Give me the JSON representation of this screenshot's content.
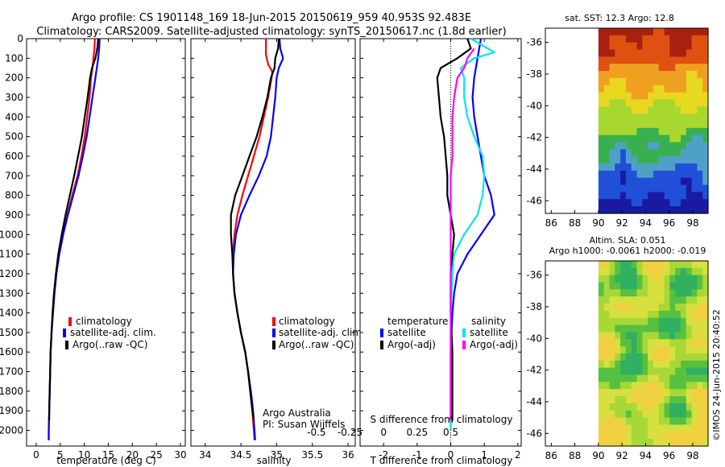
{
  "header": {
    "line1": "Argo profile: CS 1901148_169 18-Jun-2015 20150619_959 40.953S 92.483E",
    "line2": "Climatology: CARS2009. Satellite-adjusted climatology: synTS_20150617.nc (1.8d earlier)"
  },
  "credits": {
    "org": "Argo Australia",
    "pi": "PI: Susan Wijffels",
    "stamp": "©IMOS 24-Jun-2015 20:40:52"
  },
  "colors": {
    "climatology": "#ff0000",
    "satellite": "#0000ff",
    "argo": "#000000",
    "t_satellite": "#0000ff",
    "t_argo": "#000000",
    "s_satellite": "#00e5ee",
    "s_argo": "#ff00ff"
  },
  "chart_data": [
    {
      "type": "line",
      "id": "temperature",
      "xlabel": "temperature (deg C)",
      "ylabel": "",
      "xlim": [
        -2,
        31
      ],
      "ylim": [
        2080,
        0
      ],
      "xticks": [
        0,
        5,
        10,
        15,
        20,
        25,
        30
      ],
      "yticks": [
        0,
        100,
        200,
        300,
        400,
        500,
        600,
        700,
        800,
        900,
        1000,
        1100,
        1200,
        1300,
        1400,
        1500,
        1600,
        1700,
        1800,
        1900,
        2000
      ],
      "legend": [
        "climatology",
        "satellite-adj. clim.",
        "Argo(..raw -QC)"
      ],
      "series": [
        {
          "name": "climatology",
          "color_key": "climatology",
          "points": [
            [
              12.2,
              0
            ],
            [
              12.1,
              50
            ],
            [
              11.9,
              100
            ],
            [
              11.7,
              150
            ],
            [
              11.4,
              200
            ],
            [
              11.1,
              300
            ],
            [
              10.6,
              400
            ],
            [
              10.1,
              500
            ],
            [
              9.4,
              600
            ],
            [
              8.6,
              700
            ],
            [
              7.5,
              800
            ],
            [
              6.5,
              900
            ],
            [
              5.6,
              1000
            ],
            [
              4.8,
              1100
            ],
            [
              4.2,
              1200
            ],
            [
              3.8,
              1300
            ],
            [
              3.5,
              1400
            ],
            [
              3.2,
              1500
            ],
            [
              3.0,
              1600
            ],
            [
              2.9,
              1700
            ],
            [
              2.8,
              1800
            ],
            [
              2.7,
              1900
            ],
            [
              2.6,
              2000
            ],
            [
              2.6,
              2050
            ]
          ]
        },
        {
          "name": "satellite-adj. clim.",
          "color_key": "satellite",
          "points": [
            [
              13.2,
              0
            ],
            [
              13.1,
              50
            ],
            [
              12.9,
              100
            ],
            [
              12.6,
              150
            ],
            [
              12.3,
              200
            ],
            [
              11.7,
              300
            ],
            [
              11.1,
              400
            ],
            [
              10.5,
              500
            ],
            [
              9.7,
              600
            ],
            [
              8.8,
              700
            ],
            [
              7.7,
              800
            ],
            [
              6.6,
              900
            ],
            [
              5.6,
              1000
            ],
            [
              4.8,
              1100
            ],
            [
              4.2,
              1200
            ],
            [
              3.8,
              1300
            ],
            [
              3.5,
              1400
            ],
            [
              3.2,
              1500
            ],
            [
              3.0,
              1600
            ],
            [
              2.9,
              1700
            ],
            [
              2.8,
              1800
            ],
            [
              2.7,
              1900
            ],
            [
              2.6,
              2000
            ],
            [
              2.6,
              2050
            ]
          ]
        },
        {
          "name": "Argo(..raw -QC)",
          "color_key": "argo",
          "points": [
            [
              12.9,
              0
            ],
            [
              12.7,
              50
            ],
            [
              12.3,
              100
            ],
            [
              11.6,
              150
            ],
            [
              11.2,
              200
            ],
            [
              10.7,
              300
            ],
            [
              10.1,
              400
            ],
            [
              9.5,
              500
            ],
            [
              8.7,
              600
            ],
            [
              7.9,
              700
            ],
            [
              7.0,
              800
            ],
            [
              6.1,
              900
            ],
            [
              5.3,
              1000
            ],
            [
              4.6,
              1100
            ],
            [
              4.1,
              1200
            ],
            [
              3.7,
              1300
            ],
            [
              3.4,
              1400
            ],
            [
              3.2,
              1500
            ],
            [
              3.0,
              1600
            ],
            [
              2.9,
              1700
            ],
            [
              2.8,
              1800
            ],
            [
              2.7,
              1900
            ],
            [
              2.7,
              1950
            ]
          ]
        }
      ]
    },
    {
      "type": "line",
      "id": "salinity",
      "xlabel": "salinity",
      "ylabel": "",
      "xlim": [
        33.8,
        36.1
      ],
      "ylim": [
        2080,
        0
      ],
      "xticks": [
        34,
        34.5,
        35,
        35.5,
        36
      ],
      "yticks": [
        0,
        100,
        200,
        300,
        400,
        500,
        600,
        700,
        800,
        900,
        1000,
        1100,
        1200,
        1300,
        1400,
        1500,
        1600,
        1700,
        1800,
        1900,
        2000
      ],
      "legend": [
        "climatology",
        "satellite-adj. clim.",
        "Argo(..raw -QC)"
      ],
      "series": [
        {
          "name": "climatology",
          "color_key": "climatology",
          "points": [
            [
              34.85,
              0
            ],
            [
              34.85,
              80
            ],
            [
              34.88,
              130
            ],
            [
              34.94,
              170
            ],
            [
              34.93,
              200
            ],
            [
              34.88,
              300
            ],
            [
              34.82,
              400
            ],
            [
              34.76,
              500
            ],
            [
              34.68,
              600
            ],
            [
              34.6,
              700
            ],
            [
              34.52,
              800
            ],
            [
              34.45,
              900
            ],
            [
              34.41,
              1000
            ],
            [
              34.39,
              1100
            ],
            [
              34.39,
              1200
            ],
            [
              34.41,
              1300
            ],
            [
              34.45,
              1400
            ],
            [
              34.5,
              1500
            ],
            [
              34.56,
              1600
            ],
            [
              34.6,
              1700
            ],
            [
              34.63,
              1800
            ],
            [
              34.66,
              1900
            ],
            [
              34.68,
              2000
            ],
            [
              34.69,
              2050
            ]
          ]
        },
        {
          "name": "satellite-adj. clim.",
          "color_key": "satellite",
          "points": [
            [
              35.04,
              0
            ],
            [
              35.05,
              50
            ],
            [
              35.09,
              100
            ],
            [
              35.03,
              150
            ],
            [
              35.0,
              200
            ],
            [
              34.98,
              300
            ],
            [
              34.95,
              400
            ],
            [
              34.92,
              500
            ],
            [
              34.86,
              600
            ],
            [
              34.75,
              700
            ],
            [
              34.62,
              800
            ],
            [
              34.5,
              900
            ],
            [
              34.43,
              1000
            ],
            [
              34.4,
              1100
            ],
            [
              34.39,
              1200
            ],
            [
              34.41,
              1300
            ],
            [
              34.45,
              1400
            ],
            [
              34.5,
              1500
            ],
            [
              34.56,
              1600
            ],
            [
              34.6,
              1700
            ],
            [
              34.64,
              1800
            ],
            [
              34.67,
              1900
            ],
            [
              34.69,
              2000
            ],
            [
              34.7,
              2050
            ]
          ]
        },
        {
          "name": "Argo(..raw -QC)",
          "color_key": "argo",
          "points": [
            [
              35.03,
              0
            ],
            [
              35.02,
              50
            ],
            [
              34.98,
              100
            ],
            [
              34.97,
              150
            ],
            [
              34.94,
              180
            ],
            [
              34.92,
              200
            ],
            [
              34.87,
              300
            ],
            [
              34.8,
              400
            ],
            [
              34.72,
              500
            ],
            [
              34.62,
              600
            ],
            [
              34.52,
              700
            ],
            [
              34.42,
              800
            ],
            [
              34.36,
              900
            ],
            [
              34.36,
              1000
            ],
            [
              34.38,
              1100
            ],
            [
              34.39,
              1200
            ],
            [
              34.41,
              1300
            ],
            [
              34.45,
              1400
            ],
            [
              34.5,
              1500
            ],
            [
              34.56,
              1600
            ],
            [
              34.6,
              1700
            ],
            [
              34.63,
              1800
            ],
            [
              34.66,
              1900
            ],
            [
              34.68,
              1950
            ]
          ]
        }
      ]
    },
    {
      "type": "line",
      "id": "difference",
      "title": "S difference from climatology",
      "xlabel": "T difference from climatology",
      "xlim": [
        -2.7,
        2.1
      ],
      "ylim": [
        2080,
        0
      ],
      "xticks_bottom": [
        -2,
        -1,
        0,
        1,
        2
      ],
      "xticks_top": [
        "-0.5",
        "-0.25",
        "0",
        "0.25",
        "0.5"
      ],
      "zero_line": true,
      "legend_groups": [
        {
          "title": "temperature",
          "entries": [
            "satellite",
            "Argo(-adj)"
          ]
        },
        {
          "title": "salinity",
          "entries": [
            "satellite",
            "Argo(-adj)"
          ]
        }
      ],
      "series": [
        {
          "name": "temperature satellite",
          "color_key": "t_satellite",
          "points": [
            [
              0.9,
              0
            ],
            [
              0.8,
              100
            ],
            [
              0.7,
              200
            ],
            [
              0.65,
              300
            ],
            [
              0.7,
              400
            ],
            [
              0.8,
              500
            ],
            [
              0.9,
              600
            ],
            [
              1.0,
              700
            ],
            [
              1.2,
              800
            ],
            [
              1.3,
              900
            ],
            [
              0.9,
              1000
            ],
            [
              0.5,
              1100
            ],
            [
              0.2,
              1200
            ],
            [
              0.1,
              1300
            ],
            [
              0.05,
              1400
            ],
            [
              0.0,
              1600
            ],
            [
              0.0,
              1800
            ],
            [
              0.0,
              2000
            ]
          ]
        },
        {
          "name": "temperature Argo(-adj)",
          "color_key": "t_argo",
          "points": [
            [
              0.5,
              0
            ],
            [
              0.6,
              50
            ],
            [
              0.2,
              100
            ],
            [
              -0.3,
              150
            ],
            [
              -0.4,
              200
            ],
            [
              -0.35,
              300
            ],
            [
              -0.3,
              400
            ],
            [
              -0.2,
              500
            ],
            [
              -0.15,
              600
            ],
            [
              -0.1,
              700
            ],
            [
              -0.1,
              800
            ],
            [
              0.1,
              1000
            ],
            [
              0.05,
              1100
            ],
            [
              0.0,
              1200
            ],
            [
              0.0,
              1400
            ],
            [
              0.05,
              1600
            ],
            [
              0.05,
              1800
            ],
            [
              0.05,
              1950
            ]
          ]
        },
        {
          "name": "salinity satellite",
          "color_key": "s_satellite",
          "points": [
            [
              0.6,
              0
            ],
            [
              1.3,
              70
            ],
            [
              0.7,
              100
            ],
            [
              0.3,
              150
            ],
            [
              0.4,
              200
            ],
            [
              0.4,
              300
            ],
            [
              0.5,
              400
            ],
            [
              0.7,
              500
            ],
            [
              0.95,
              600
            ],
            [
              1.0,
              700
            ],
            [
              0.95,
              800
            ],
            [
              0.8,
              900
            ],
            [
              0.4,
              1000
            ],
            [
              0.1,
              1100
            ],
            [
              0.05,
              1200
            ],
            [
              0.0,
              1400
            ],
            [
              0.0,
              1600
            ],
            [
              0.0,
              1800
            ],
            [
              0.0,
              2000
            ]
          ]
        },
        {
          "name": "salinity Argo(-adj)",
          "color_key": "s_argo",
          "points": [
            [
              0.7,
              50
            ],
            [
              0.5,
              100
            ],
            [
              0.4,
              150
            ],
            [
              0.2,
              200
            ],
            [
              0.1,
              300
            ],
            [
              0.05,
              400
            ],
            [
              0.05,
              600
            ],
            [
              0.0,
              700
            ],
            [
              0.0,
              800
            ],
            [
              0.0,
              1000
            ],
            [
              0.0,
              1200
            ],
            [
              0.0,
              1400
            ],
            [
              0.0,
              1600
            ],
            [
              0.0,
              1800
            ],
            [
              0.0,
              1950
            ]
          ]
        }
      ]
    },
    {
      "type": "heatmap",
      "id": "sst-map",
      "title": "sat. SST: 12.3 Argo: 12.8",
      "xlim": [
        85.5,
        99.3
      ],
      "ylim": [
        -46.8,
        -35.1
      ],
      "xticks": [
        86,
        88,
        90,
        92,
        94,
        96,
        98
      ],
      "yticks": [
        -36,
        -38,
        -40,
        -42,
        -44,
        -46
      ],
      "data_xlim": [
        90,
        99.3
      ],
      "palette": [
        "#1a1aa0",
        "#2050d8",
        "#4fa0c8",
        "#38b050",
        "#a8d830",
        "#e8d820",
        "#f0a020",
        "#e05010",
        "#a82010"
      ],
      "color_levels": [
        0.95,
        0.88,
        0.8,
        0.72,
        0.62,
        0.55,
        0.45,
        0.35,
        0.25,
        0.15,
        0.05
      ]
    },
    {
      "type": "heatmap",
      "id": "sla-map",
      "title": "Altim. SLA: 0.051",
      "subtitle": "Argo h1000: -0.0061 h2000: -0.019",
      "xlim": [
        85.5,
        99.3
      ],
      "ylim": [
        -46.8,
        -35.1
      ],
      "xticks": [
        86,
        88,
        90,
        92,
        94,
        96,
        98
      ],
      "yticks": [
        -36,
        -38,
        -40,
        -42,
        -44,
        -46
      ],
      "data_xlim": [
        90,
        99.3
      ],
      "palette": [
        "#30b060",
        "#58c040",
        "#a8d838",
        "#d8e040",
        "#f0d040"
      ]
    }
  ]
}
